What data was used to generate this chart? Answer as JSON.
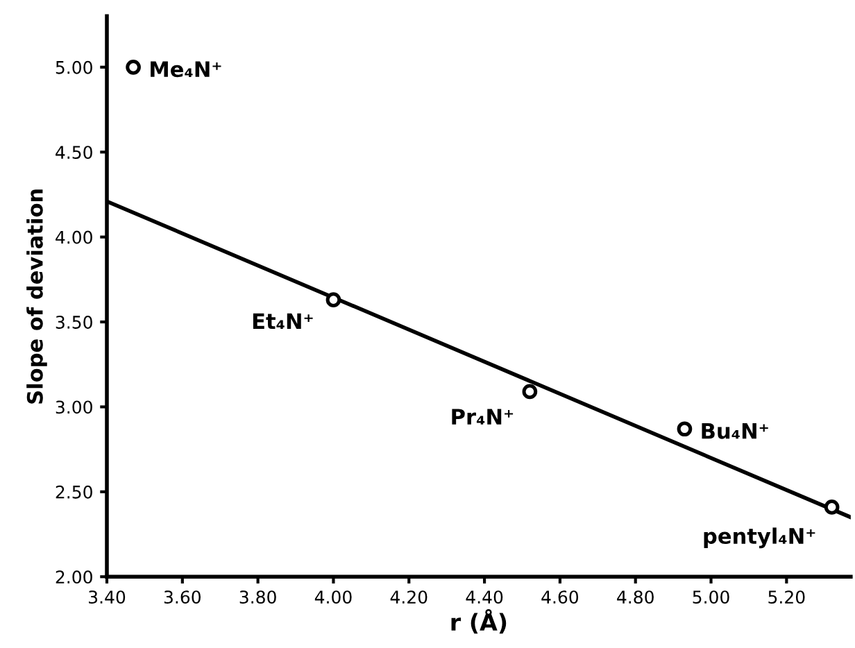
{
  "chart_data": {
    "type": "scatter",
    "xlabel": "r (Å)",
    "ylabel": "Slope of deviation",
    "xlim": [
      3.4,
      5.37
    ],
    "ylim": [
      2.0,
      5.3
    ],
    "xticks": [
      {
        "value": 3.4,
        "label": "3.40"
      },
      {
        "value": 3.6,
        "label": "3.60"
      },
      {
        "value": 3.8,
        "label": "3.80"
      },
      {
        "value": 4.0,
        "label": "4.00"
      },
      {
        "value": 4.2,
        "label": "4.20"
      },
      {
        "value": 4.4,
        "label": "4.40"
      },
      {
        "value": 4.6,
        "label": "4.60"
      },
      {
        "value": 4.8,
        "label": "4.80"
      },
      {
        "value": 5.0,
        "label": "5.00"
      },
      {
        "value": 5.2,
        "label": "5.20"
      }
    ],
    "yticks": [
      {
        "value": 2.0,
        "label": "2.00"
      },
      {
        "value": 2.5,
        "label": "2.50"
      },
      {
        "value": 3.0,
        "label": "3.00"
      },
      {
        "value": 3.5,
        "label": "3.50"
      },
      {
        "value": 4.0,
        "label": "4.00"
      },
      {
        "value": 4.5,
        "label": "4.50"
      },
      {
        "value": 5.0,
        "label": "5.00"
      }
    ],
    "grid": false,
    "series": [
      {
        "marker": "circle",
        "color": "#000000",
        "x": [
          3.47,
          4.0,
          4.52,
          4.93,
          5.32
        ],
        "values": [
          5.0,
          3.63,
          3.09,
          2.87,
          2.41
        ]
      },
      {
        "type": "line",
        "color": "#000000",
        "x": [
          3.4,
          5.37
        ],
        "values": [
          4.21,
          2.35
        ]
      }
    ],
    "annotations": [
      {
        "text": "Me₄N⁺",
        "x": 3.47,
        "y": 5.0
      },
      {
        "text": "Et₄N⁺",
        "x": 4.0,
        "y": 3.63
      },
      {
        "text": "Pr₄N⁺",
        "x": 4.52,
        "y": 3.09
      },
      {
        "text": "Bu₄N⁺",
        "x": 4.93,
        "y": 2.87
      },
      {
        "text": "pentyl₄N⁺",
        "x": 5.32,
        "y": 2.41
      }
    ]
  }
}
